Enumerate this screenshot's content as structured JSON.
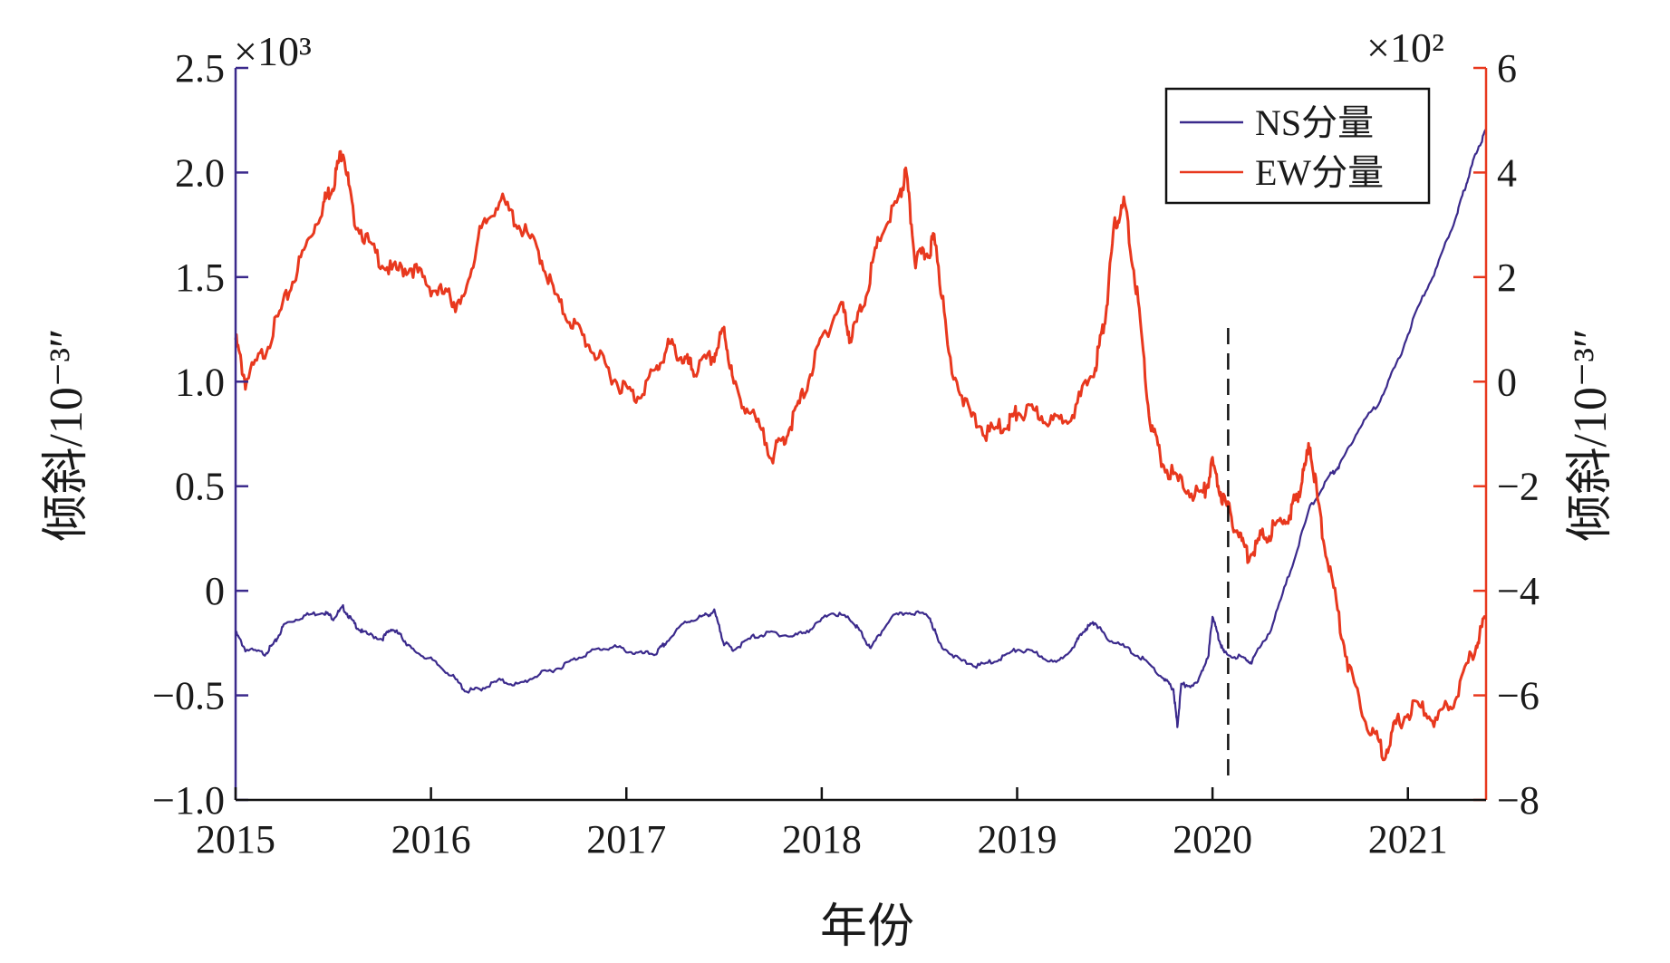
{
  "chart_data": {
    "type": "line",
    "xlabel": "年份",
    "x_ticks": [
      2015,
      2016,
      2017,
      2018,
      2019,
      2020,
      2021
    ],
    "xlim": [
      2015.0,
      2021.4
    ],
    "left_axis": {
      "label": "倾斜/10⁻³″",
      "ylim": [
        -1.0,
        2.5
      ],
      "ticks": [
        "−1.0",
        "−0.5",
        "0",
        "0.5",
        "1.0",
        "1.5",
        "2.0",
        "2.5"
      ],
      "tick_values": [
        -1.0,
        -0.5,
        0,
        0.5,
        1.0,
        1.5,
        2.0,
        2.5
      ],
      "multiplier": "×10³",
      "color": "#3b2a8c"
    },
    "right_axis": {
      "label": "倾斜/10⁻³″",
      "ylim": [
        -8,
        6
      ],
      "ticks": [
        "−8",
        "−6",
        "−4",
        "−2",
        "0",
        "2",
        "4",
        "6"
      ],
      "tick_values": [
        -8,
        -6,
        -4,
        -2,
        0,
        2,
        4,
        6
      ],
      "multiplier": "×10²",
      "color": "#e8381e"
    },
    "legend": {
      "placement": "top-right",
      "entries": [
        "NS分量",
        "EW分量"
      ]
    },
    "vline_x": 2020.08,
    "series": [
      {
        "name": "NS分量",
        "axis": "left",
        "color": "#3b2a8c",
        "points": [
          [
            2015.0,
            -0.2
          ],
          [
            2015.05,
            -0.28
          ],
          [
            2015.15,
            -0.3
          ],
          [
            2015.2,
            -0.25
          ],
          [
            2015.25,
            -0.16
          ],
          [
            2015.35,
            -0.12
          ],
          [
            2015.45,
            -0.1
          ],
          [
            2015.5,
            -0.13
          ],
          [
            2015.55,
            -0.08
          ],
          [
            2015.6,
            -0.15
          ],
          [
            2015.65,
            -0.2
          ],
          [
            2015.75,
            -0.23
          ],
          [
            2015.8,
            -0.18
          ],
          [
            2015.85,
            -0.22
          ],
          [
            2015.9,
            -0.28
          ],
          [
            2016.0,
            -0.33
          ],
          [
            2016.1,
            -0.4
          ],
          [
            2016.18,
            -0.48
          ],
          [
            2016.25,
            -0.47
          ],
          [
            2016.35,
            -0.43
          ],
          [
            2016.45,
            -0.45
          ],
          [
            2016.55,
            -0.4
          ],
          [
            2016.65,
            -0.37
          ],
          [
            2016.75,
            -0.32
          ],
          [
            2016.85,
            -0.28
          ],
          [
            2016.95,
            -0.27
          ],
          [
            2017.05,
            -0.3
          ],
          [
            2017.15,
            -0.3
          ],
          [
            2017.2,
            -0.25
          ],
          [
            2017.3,
            -0.15
          ],
          [
            2017.4,
            -0.12
          ],
          [
            2017.45,
            -0.1
          ],
          [
            2017.5,
            -0.25
          ],
          [
            2017.55,
            -0.28
          ],
          [
            2017.65,
            -0.22
          ],
          [
            2017.75,
            -0.2
          ],
          [
            2017.85,
            -0.22
          ],
          [
            2017.95,
            -0.18
          ],
          [
            2018.05,
            -0.1
          ],
          [
            2018.15,
            -0.14
          ],
          [
            2018.2,
            -0.2
          ],
          [
            2018.25,
            -0.28
          ],
          [
            2018.35,
            -0.13
          ],
          [
            2018.45,
            -0.1
          ],
          [
            2018.55,
            -0.12
          ],
          [
            2018.6,
            -0.25
          ],
          [
            2018.7,
            -0.33
          ],
          [
            2018.8,
            -0.36
          ],
          [
            2018.9,
            -0.33
          ],
          [
            2019.0,
            -0.28
          ],
          [
            2019.1,
            -0.3
          ],
          [
            2019.2,
            -0.35
          ],
          [
            2019.3,
            -0.25
          ],
          [
            2019.35,
            -0.18
          ],
          [
            2019.4,
            -0.15
          ],
          [
            2019.45,
            -0.22
          ],
          [
            2019.55,
            -0.27
          ],
          [
            2019.65,
            -0.33
          ],
          [
            2019.75,
            -0.42
          ],
          [
            2019.8,
            -0.47
          ],
          [
            2019.82,
            -0.65
          ],
          [
            2019.84,
            -0.45
          ],
          [
            2019.92,
            -0.45
          ],
          [
            2019.98,
            -0.3
          ],
          [
            2020.0,
            -0.12
          ],
          [
            2020.03,
            -0.22
          ],
          [
            2020.06,
            -0.3
          ],
          [
            2020.15,
            -0.32
          ],
          [
            2020.2,
            -0.34
          ],
          [
            2020.3,
            -0.18
          ],
          [
            2020.4,
            0.1
          ],
          [
            2020.5,
            0.4
          ],
          [
            2020.6,
            0.55
          ],
          [
            2020.65,
            0.6
          ],
          [
            2020.75,
            0.78
          ],
          [
            2020.85,
            0.9
          ],
          [
            2020.95,
            1.1
          ],
          [
            2021.05,
            1.35
          ],
          [
            2021.15,
            1.55
          ],
          [
            2021.25,
            1.8
          ],
          [
            2021.3,
            1.95
          ],
          [
            2021.35,
            2.1
          ],
          [
            2021.4,
            2.2
          ]
        ]
      },
      {
        "name": "EW分量",
        "axis": "right",
        "color": "#e8381e",
        "points": [
          [
            2015.0,
            0.8
          ],
          [
            2015.05,
            0.0
          ],
          [
            2015.15,
            0.6
          ],
          [
            2015.25,
            1.5
          ],
          [
            2015.35,
            2.5
          ],
          [
            2015.45,
            3.4
          ],
          [
            2015.5,
            3.8
          ],
          [
            2015.55,
            4.5
          ],
          [
            2015.6,
            3.2
          ],
          [
            2015.7,
            2.5
          ],
          [
            2015.8,
            2.1
          ],
          [
            2015.9,
            2.2
          ],
          [
            2016.0,
            1.8
          ],
          [
            2016.1,
            1.6
          ],
          [
            2016.15,
            1.4
          ],
          [
            2016.25,
            2.8
          ],
          [
            2016.35,
            3.5
          ],
          [
            2016.45,
            3.0
          ],
          [
            2016.55,
            2.5
          ],
          [
            2016.65,
            1.5
          ],
          [
            2016.75,
            1.0
          ],
          [
            2016.85,
            0.5
          ],
          [
            2016.95,
            0.0
          ],
          [
            2017.05,
            -0.3
          ],
          [
            2017.15,
            0.2
          ],
          [
            2017.22,
            0.7
          ],
          [
            2017.3,
            0.4
          ],
          [
            2017.35,
            0.2
          ],
          [
            2017.45,
            0.5
          ],
          [
            2017.5,
            1.0
          ],
          [
            2017.55,
            -0.1
          ],
          [
            2017.65,
            -0.7
          ],
          [
            2017.75,
            -1.4
          ],
          [
            2017.82,
            -1.0
          ],
          [
            2017.9,
            -0.3
          ],
          [
            2018.0,
            0.8
          ],
          [
            2018.1,
            1.5
          ],
          [
            2018.15,
            0.8
          ],
          [
            2018.22,
            1.6
          ],
          [
            2018.3,
            2.8
          ],
          [
            2018.4,
            3.5
          ],
          [
            2018.43,
            4.0
          ],
          [
            2018.48,
            2.3
          ],
          [
            2018.55,
            2.5
          ],
          [
            2018.58,
            2.8
          ],
          [
            2018.65,
            0.5
          ],
          [
            2018.75,
            -0.6
          ],
          [
            2018.85,
            -1.0
          ],
          [
            2018.95,
            -0.8
          ],
          [
            2019.0,
            -0.6
          ],
          [
            2019.1,
            -0.6
          ],
          [
            2019.2,
            -0.8
          ],
          [
            2019.3,
            -0.5
          ],
          [
            2019.4,
            0.3
          ],
          [
            2019.45,
            1.2
          ],
          [
            2019.5,
            3.0
          ],
          [
            2019.55,
            3.4
          ],
          [
            2019.62,
            1.5
          ],
          [
            2019.68,
            -0.8
          ],
          [
            2019.75,
            -1.6
          ],
          [
            2019.85,
            -2.0
          ],
          [
            2019.95,
            -2.2
          ],
          [
            2020.0,
            -1.6
          ],
          [
            2020.05,
            -2.2
          ],
          [
            2020.12,
            -2.8
          ],
          [
            2020.18,
            -3.3
          ],
          [
            2020.25,
            -3.0
          ],
          [
            2020.32,
            -2.8
          ],
          [
            2020.4,
            -2.5
          ],
          [
            2020.45,
            -2.0
          ],
          [
            2020.5,
            -1.2
          ],
          [
            2020.55,
            -2.6
          ],
          [
            2020.62,
            -4.0
          ],
          [
            2020.7,
            -5.5
          ],
          [
            2020.8,
            -6.6
          ],
          [
            2020.88,
            -7.1
          ],
          [
            2020.95,
            -6.5
          ],
          [
            2021.05,
            -6.2
          ],
          [
            2021.15,
            -6.5
          ],
          [
            2021.25,
            -6.0
          ],
          [
            2021.35,
            -5.0
          ],
          [
            2021.4,
            -4.5
          ]
        ]
      }
    ]
  }
}
